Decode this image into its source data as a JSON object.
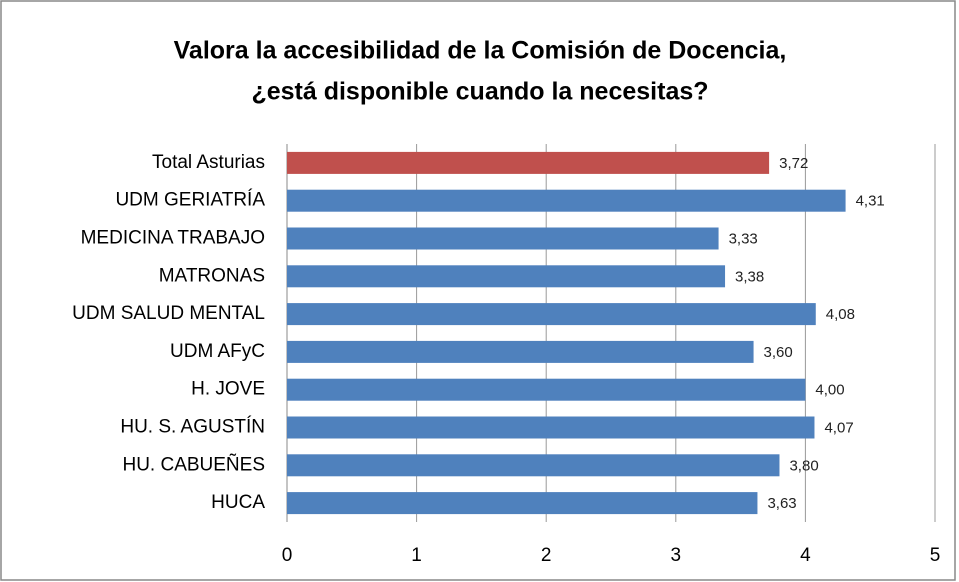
{
  "chart_data": {
    "type": "bar",
    "orientation": "horizontal",
    "title": [
      "Valora la accesibilidad de la Comisión de Docencia,",
      "¿está disponible cuando la necesitas?"
    ],
    "categories": [
      "Total Asturias",
      "UDM GERIATRÍA",
      "MEDICINA TRABAJO",
      "MATRONAS",
      "UDM SALUD MENTAL",
      "UDM AFyC",
      "H. JOVE",
      "HU. S. AGUSTÍN",
      "HU. CABUEÑES",
      "HUCA"
    ],
    "values": [
      3.72,
      4.31,
      3.33,
      3.38,
      4.08,
      3.6,
      4.0,
      4.07,
      3.8,
      3.63
    ],
    "value_labels": [
      "3,72",
      "4,31",
      "3,33",
      "3,38",
      "4,08",
      "3,60",
      "4,00",
      "4,07",
      "3,80",
      "3,63"
    ],
    "colors": [
      "#c0504d",
      "#4f81bd",
      "#4f81bd",
      "#4f81bd",
      "#4f81bd",
      "#4f81bd",
      "#4f81bd",
      "#4f81bd",
      "#4f81bd",
      "#4f81bd"
    ],
    "xlim": [
      0,
      5
    ],
    "xticks": [
      0,
      1,
      2,
      3,
      4,
      5
    ],
    "grid": true
  }
}
